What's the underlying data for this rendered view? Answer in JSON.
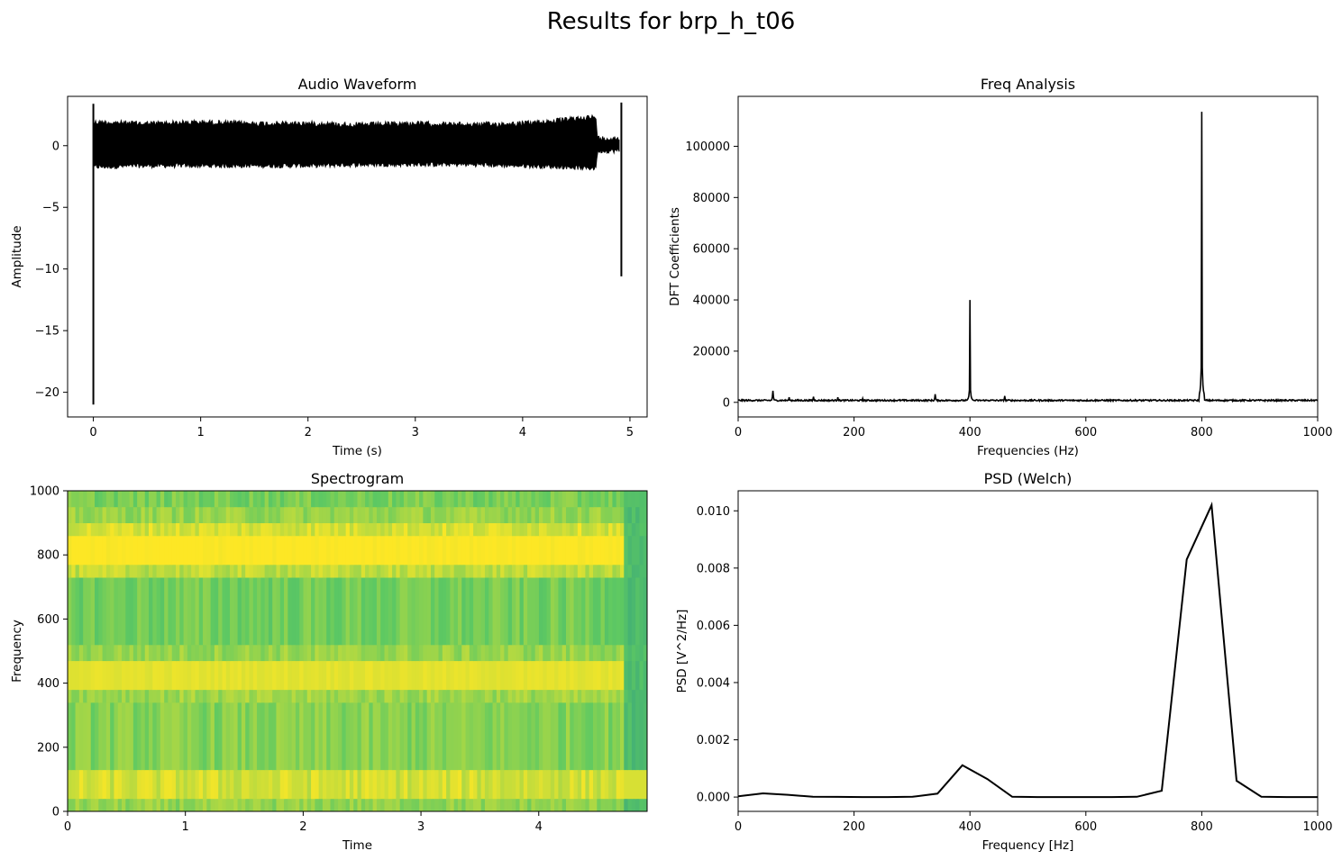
{
  "figure_title": "Results for brp_h_t06",
  "chart_data": [
    {
      "type": "line",
      "title": "Audio Waveform",
      "xlabel": "Time (s)",
      "ylabel": "Amplitude",
      "xlim": [
        -0.24,
        5.16
      ],
      "ylim": [
        -22.0,
        4.0
      ],
      "xticks": [
        0,
        1,
        2,
        3,
        4,
        5
      ],
      "yticks": [
        -20,
        -15,
        -10,
        -5,
        0
      ],
      "color": "#000000",
      "envelope": {
        "x": [
          0.0,
          0.05,
          0.5,
          1.0,
          1.5,
          2.0,
          2.5,
          3.0,
          3.5,
          4.0,
          4.4,
          4.6,
          4.68,
          4.7,
          4.9
        ],
        "upper": [
          2.1,
          2.1,
          2.0,
          2.1,
          2.0,
          2.0,
          1.9,
          2.0,
          1.9,
          2.0,
          2.3,
          2.5,
          2.5,
          0.8,
          0.8
        ],
        "lower": [
          -1.9,
          -1.9,
          -1.8,
          -1.8,
          -1.8,
          -1.8,
          -1.7,
          -1.7,
          -1.7,
          -1.8,
          -1.9,
          -2.0,
          -2.0,
          -0.6,
          -0.6
        ]
      },
      "spikes": [
        {
          "x": 0.0,
          "min": -21.0,
          "max": 3.4
        },
        {
          "x": 4.92,
          "min": -10.6,
          "max": 3.5
        }
      ]
    },
    {
      "type": "line",
      "title": "Freq Analysis",
      "xlabel": "Frequencies (Hz)",
      "ylabel": "DFT Coefficients",
      "xlim": [
        0,
        1000
      ],
      "ylim": [
        -5700,
        119500
      ],
      "xticks": [
        0,
        200,
        400,
        600,
        800,
        1000
      ],
      "yticks": [
        0,
        20000,
        40000,
        60000,
        80000,
        100000
      ],
      "color": "#000000",
      "baseline": 800,
      "peaks": [
        {
          "x": 60,
          "y": 4500
        },
        {
          "x": 88,
          "y": 2000
        },
        {
          "x": 130,
          "y": 2200
        },
        {
          "x": 172,
          "y": 2000
        },
        {
          "x": 215,
          "y": 1500
        },
        {
          "x": 340,
          "y": 3200
        },
        {
          "x": 400,
          "y": 40000
        },
        {
          "x": 460,
          "y": 2500
        },
        {
          "x": 800,
          "y": 113500
        }
      ]
    },
    {
      "type": "heatmap",
      "title": "Spectrogram",
      "xlabel": "Time",
      "ylabel": "Frequency",
      "xlim": [
        0,
        4.92
      ],
      "ylim": [
        0,
        1000
      ],
      "xticks": [
        0,
        1,
        2,
        3,
        4
      ],
      "yticks": [
        0,
        200,
        400,
        600,
        800,
        1000
      ],
      "colormap": "viridis",
      "color_min": "#21918c",
      "color_max": "#fde725",
      "bands": [
        {
          "from": 0,
          "to": 40,
          "level": 0.66
        },
        {
          "from": 40,
          "to": 130,
          "level": 0.86
        },
        {
          "from": 130,
          "to": 340,
          "level": 0.62
        },
        {
          "from": 340,
          "to": 380,
          "level": 0.7
        },
        {
          "from": 380,
          "to": 470,
          "level": 0.92
        },
        {
          "from": 470,
          "to": 520,
          "level": 0.68
        },
        {
          "from": 520,
          "to": 730,
          "level": 0.56
        },
        {
          "from": 730,
          "to": 770,
          "level": 0.8
        },
        {
          "from": 770,
          "to": 860,
          "level": 1.0
        },
        {
          "from": 860,
          "to": 900,
          "level": 0.88
        },
        {
          "from": 900,
          "to": 950,
          "level": 0.68
        },
        {
          "from": 950,
          "to": 1000,
          "level": 0.58
        }
      ],
      "tail_start": 4.7
    },
    {
      "type": "line",
      "title": "PSD (Welch)",
      "xlabel": "Frequency [Hz]",
      "ylabel": "PSD [V^2/Hz]",
      "xlim": [
        0,
        1000
      ],
      "ylim": [
        -0.0005,
        0.0107
      ],
      "xticks": [
        0,
        200,
        400,
        600,
        800,
        1000
      ],
      "yticks": [
        0.0,
        0.002,
        0.004,
        0.006,
        0.008,
        0.01
      ],
      "ytick_labels": [
        "0.000",
        "0.002",
        "0.004",
        "0.006",
        "0.008",
        "0.010"
      ],
      "color": "#000000",
      "x": [
        0,
        43,
        86,
        129,
        172,
        215,
        258,
        301,
        344,
        387,
        430,
        473,
        516,
        559,
        602,
        645,
        688,
        731,
        774,
        817,
        860,
        903,
        946,
        1000
      ],
      "y": [
        3e-05,
        0.00013,
        8e-05,
        1e-05,
        5e-06,
        0.0,
        0.0,
        1e-05,
        0.00012,
        0.00111,
        0.00063,
        1e-05,
        0.0,
        0.0,
        0.0,
        0.0,
        1e-05,
        0.00022,
        0.0083,
        0.0102,
        0.00057,
        1e-05,
        0.0,
        0.0
      ]
    }
  ]
}
